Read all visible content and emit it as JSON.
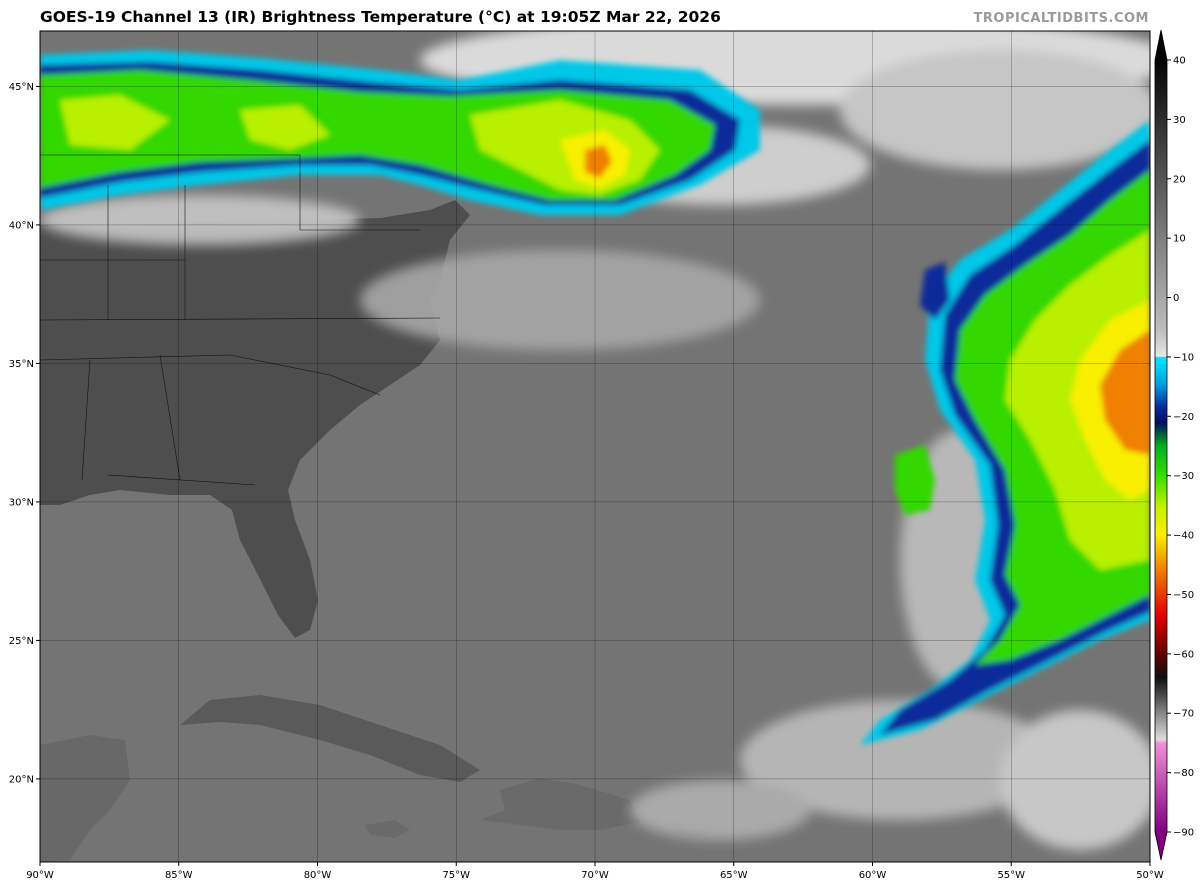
{
  "title": "GOES-19 Channel 13 (IR) Brightness Temperature (°C) at 19:05Z Mar 22, 2026",
  "credit": "TROPICALTIDBITS.COM",
  "map": {
    "lon_range": [
      -90,
      -50
    ],
    "lat_range": [
      17,
      47
    ],
    "lon_ticks": [
      {
        "value": -90,
        "label": "90°W"
      },
      {
        "value": -85,
        "label": "85°W"
      },
      {
        "value": -80,
        "label": "80°W"
      },
      {
        "value": -75,
        "label": "75°W"
      },
      {
        "value": -70,
        "label": "70°W"
      },
      {
        "value": -65,
        "label": "65°W"
      },
      {
        "value": -60,
        "label": "60°W"
      },
      {
        "value": -55,
        "label": "55°W"
      },
      {
        "value": -50,
        "label": "50°W"
      }
    ],
    "lat_ticks": [
      {
        "value": 45,
        "label": "45°N"
      },
      {
        "value": 40,
        "label": "40°N"
      },
      {
        "value": 35,
        "label": "35°N"
      },
      {
        "value": 30,
        "label": "30°N"
      },
      {
        "value": 25,
        "label": "25°N"
      },
      {
        "value": 20,
        "label": "20°N"
      }
    ]
  },
  "colorbar": {
    "range": [
      -90,
      40
    ],
    "ticks": [
      {
        "value": 40,
        "label": "40"
      },
      {
        "value": 30,
        "label": "30"
      },
      {
        "value": 20,
        "label": "20"
      },
      {
        "value": 10,
        "label": "10"
      },
      {
        "value": 0,
        "label": "0"
      },
      {
        "value": -10,
        "label": "−10"
      },
      {
        "value": -20,
        "label": "−20"
      },
      {
        "value": -30,
        "label": "−30"
      },
      {
        "value": -40,
        "label": "−40"
      },
      {
        "value": -50,
        "label": "−50"
      },
      {
        "value": -60,
        "label": "−60"
      },
      {
        "value": -70,
        "label": "−70"
      },
      {
        "value": -80,
        "label": "−80"
      },
      {
        "value": -90,
        "label": "−90"
      }
    ],
    "colors": {
      "warm": "#1e1e1e",
      "cool": "#e8e8e8",
      "cyan": "#00d8f0",
      "blue": "#0a2a9a",
      "navy": "#001060",
      "green": "#38e000",
      "lime": "#c8f000",
      "yellow": "#f8f000",
      "orange": "#f08000",
      "red": "#e00000",
      "darkred": "#600000",
      "pink": "#f070c8",
      "purple": "#800080"
    }
  }
}
